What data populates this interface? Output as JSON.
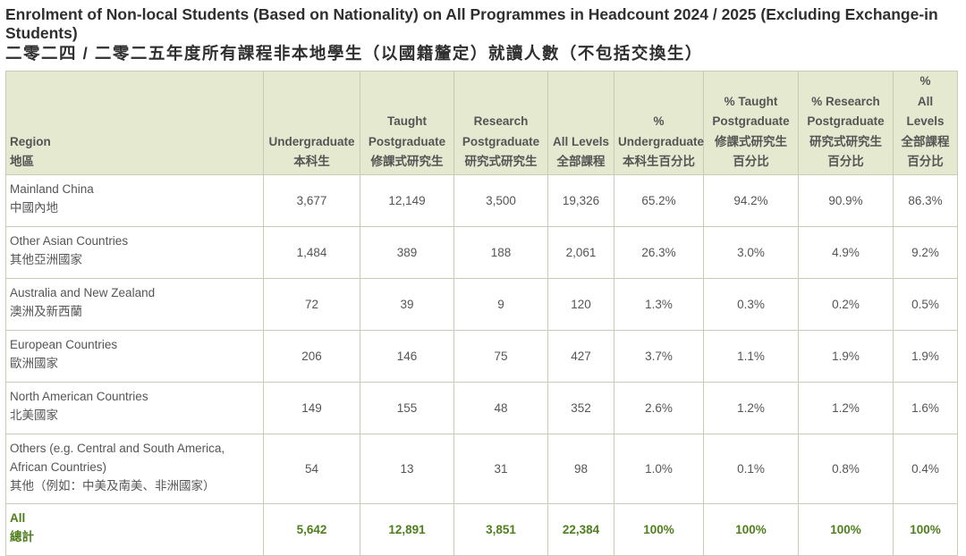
{
  "title": {
    "en": "Enrolment of Non-local Students (Based on Nationality) on All Programmes in Headcount 2024 / 2025 (Excluding Exchange-in Students)",
    "zh": "二零二四 / 二零二五年度所有課程非本地學生（以國籍釐定）就讀人數（不包括交換生）"
  },
  "columns": [
    {
      "en": "Region",
      "zh": "地區"
    },
    {
      "en": "Undergraduate",
      "zh": "本科生"
    },
    {
      "en_1": "Taught",
      "en_2": "Postgraduate",
      "zh": "修課式研究生"
    },
    {
      "en_1": "Research",
      "en_2": "Postgraduate",
      "zh": "研究式研究生"
    },
    {
      "en": "All Levels",
      "zh": "全部課程"
    },
    {
      "en_1": "%",
      "en_2": "Undergraduate",
      "zh": "本科生百分比"
    },
    {
      "en_1": "% Taught",
      "en_2": "Postgraduate",
      "zh_1": "修課式研究生",
      "zh_2": "百分比"
    },
    {
      "en_1": "% Research",
      "en_2": "Postgraduate",
      "zh_1": "研究式研究生",
      "zh_2": "百分比"
    },
    {
      "en_1": "%",
      "en_2": "All Levels",
      "zh_1": "全部課程",
      "zh_2": "百分比"
    }
  ],
  "rows": [
    {
      "en": "Mainland China",
      "zh": "中國內地",
      "values": [
        "3,677",
        "12,149",
        "3,500",
        "19,326",
        "65.2%",
        "94.2%",
        "90.9%",
        "86.3%"
      ]
    },
    {
      "en": "Other Asian Countries",
      "zh": "其他亞洲國家",
      "values": [
        "1,484",
        "389",
        "188",
        "2,061",
        "26.3%",
        "3.0%",
        "4.9%",
        "9.2%"
      ]
    },
    {
      "en": "Australia and New Zealand",
      "zh": "澳洲及新西蘭",
      "values": [
        "72",
        "39",
        "9",
        "120",
        "1.3%",
        "0.3%",
        "0.2%",
        "0.5%"
      ]
    },
    {
      "en": "European Countries",
      "zh": "歐洲國家",
      "values": [
        "206",
        "146",
        "75",
        "427",
        "3.7%",
        "1.1%",
        "1.9%",
        "1.9%"
      ]
    },
    {
      "en": "North American Countries",
      "zh": "北美國家",
      "values": [
        "149",
        "155",
        "48",
        "352",
        "2.6%",
        "1.2%",
        "1.2%",
        "1.6%"
      ]
    },
    {
      "en": "Others (e.g. Central and South America, African Countries)",
      "zh": "其他（例如：中美及南美、非洲國家）",
      "values": [
        "54",
        "13",
        "31",
        "98",
        "1.0%",
        "0.1%",
        "0.8%",
        "0.4%"
      ]
    }
  ],
  "total": {
    "en": "All",
    "zh": "總計",
    "values": [
      "5,642",
      "12,891",
      "3,851",
      "22,384",
      "100%",
      "100%",
      "100%",
      "100%"
    ]
  }
}
